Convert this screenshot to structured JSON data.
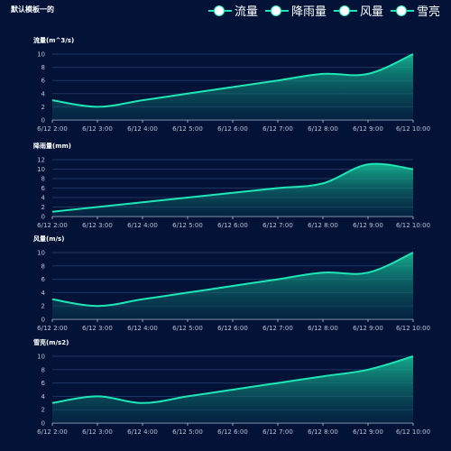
{
  "page": {
    "title": "默认模板一的"
  },
  "legend": [
    "流量",
    "降雨量",
    "风量",
    "雪亮"
  ],
  "colors": {
    "background": "#021337",
    "line": "#1ee6b5",
    "grid": "#1f3560",
    "tick": "#b9c3d6",
    "axis": "#9aa6bd"
  },
  "chart_data": [
    {
      "type": "area",
      "title": "",
      "ylabel": "流量(m^3/s)",
      "xlabel": "",
      "categories": [
        "6/12 2:00",
        "6/12 3:00",
        "6/12 4:00",
        "6/12 5:00",
        "6/12 6:00",
        "6/12 7:00",
        "6/12 8:00",
        "6/12 9:00",
        "6/12 10:00"
      ],
      "values": [
        3,
        2,
        3,
        4,
        5,
        6,
        7,
        7,
        10
      ],
      "ylim": [
        0,
        10
      ],
      "yticks": [
        0,
        2,
        4,
        6,
        8,
        10
      ],
      "grid": true
    },
    {
      "type": "area",
      "title": "",
      "ylabel": "降雨量(mm)",
      "xlabel": "",
      "categories": [
        "6/12 2:00",
        "6/12 3:00",
        "6/12 4:00",
        "6/12 5:00",
        "6/12 6:00",
        "6/12 7:00",
        "6/12 8:00",
        "6/12 9:00",
        "6/12 10:00"
      ],
      "values": [
        1,
        2,
        3,
        4,
        5,
        6,
        7,
        11,
        10
      ],
      "ylim": [
        0,
        12
      ],
      "yticks": [
        0,
        2,
        4,
        6,
        8,
        10,
        12
      ],
      "grid": true
    },
    {
      "type": "area",
      "title": "",
      "ylabel": "风量(m/s)",
      "xlabel": "",
      "categories": [
        "6/12 2:00",
        "6/12 3:00",
        "6/12 4:00",
        "6/12 5:00",
        "6/12 6:00",
        "6/12 7:00",
        "6/12 8:00",
        "6/12 9:00",
        "6/12 10:00"
      ],
      "values": [
        3,
        2,
        3,
        4,
        5,
        6,
        7,
        7,
        10
      ],
      "ylim": [
        0,
        10
      ],
      "yticks": [
        0,
        2,
        4,
        6,
        8,
        10
      ],
      "grid": true
    },
    {
      "type": "area",
      "title": "",
      "ylabel": "雪亮(m/s2)",
      "xlabel": "",
      "categories": [
        "6/12 2:00",
        "6/12 3:00",
        "6/12 4:00",
        "6/12 5:00",
        "6/12 6:00",
        "6/12 7:00",
        "6/12 8:00",
        "6/12 9:00",
        "6/12 10:00"
      ],
      "values": [
        3,
        4,
        3,
        4,
        5,
        6,
        7,
        8,
        10
      ],
      "ylim": [
        0,
        10
      ],
      "yticks": [
        0,
        2,
        4,
        6,
        8,
        10
      ],
      "grid": true
    }
  ]
}
